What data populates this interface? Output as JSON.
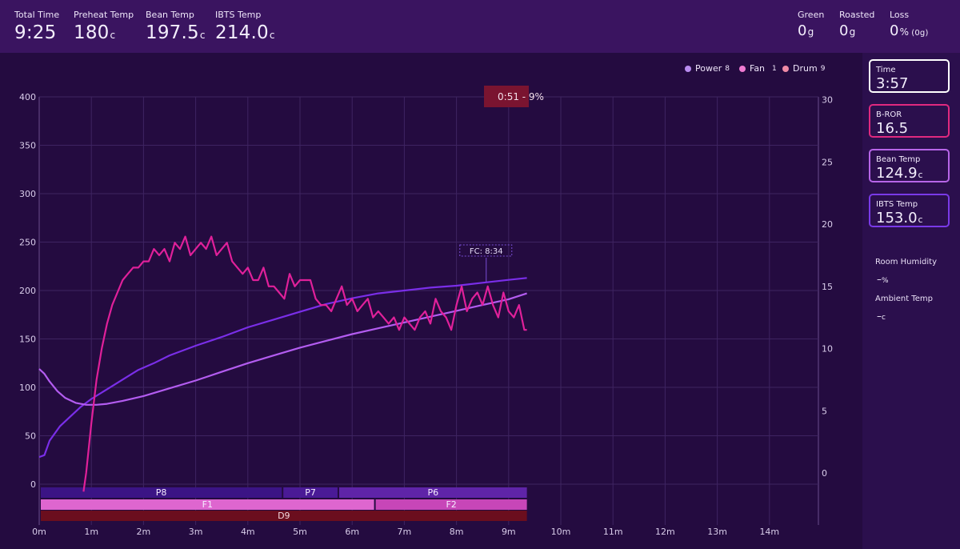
{
  "header": {
    "total_time": {
      "label": "Total Time",
      "value": "9:25"
    },
    "preheat_temp": {
      "label": "Preheat Temp",
      "value": "180",
      "unit": "c"
    },
    "bean_temp": {
      "label": "Bean Temp",
      "value": "197.5",
      "unit": "c"
    },
    "ibts_temp": {
      "label": "IBTS Temp",
      "value": "214.0",
      "unit": "c"
    },
    "green": {
      "label": "Green",
      "value": "0",
      "unit": "g"
    },
    "roasted": {
      "label": "Roasted",
      "value": "0",
      "unit": "g"
    },
    "loss": {
      "label": "Loss",
      "value": "0",
      "unit": "%",
      "extra": "(0g)"
    }
  },
  "legend": [
    {
      "name": "Power",
      "value": "8",
      "color": "#b98cf0"
    },
    {
      "name": "Fan",
      "value": "1",
      "color": "#f07ad2"
    },
    {
      "name": "Drum",
      "value": "9",
      "color": "#f08aa6"
    }
  ],
  "cursor_cards": [
    {
      "label": "Time",
      "value": "3:57",
      "unit": "",
      "border": "#ffffff"
    },
    {
      "label": "B-ROR",
      "value": "16.5",
      "unit": "",
      "border": "#e0297f"
    },
    {
      "label": "Bean Temp",
      "value": "124.9",
      "unit": "c",
      "border": "#b765e8"
    },
    {
      "label": "IBTS Temp",
      "value": "153.0",
      "unit": "c",
      "border": "#7a3ae8"
    }
  ],
  "environment": {
    "humidity_label": "Room Humidity",
    "humidity_value": "–",
    "humidity_unit": "%",
    "ambient_label": "Ambient Temp",
    "ambient_value": "–",
    "ambient_unit": "c"
  },
  "chart_data": {
    "type": "line",
    "x_unit": "minutes",
    "x_ticks": [
      "0m",
      "1m",
      "2m",
      "3m",
      "4m",
      "5m",
      "6m",
      "7m",
      "8m",
      "9m",
      "10m",
      "11m",
      "12m",
      "13m",
      "14m"
    ],
    "y_left_ticks": [
      "400",
      "350",
      "300",
      "250",
      "200",
      "150",
      "100",
      "50",
      "0"
    ],
    "y_right_ticks": [
      "30",
      "25",
      "20",
      "15",
      "10",
      "5",
      "0"
    ],
    "y_left_range": [
      0,
      400
    ],
    "y_right_range": [
      0,
      30
    ],
    "x_range": [
      0,
      14.8
    ],
    "grid": true,
    "series": [
      {
        "name": "IBTS Temp",
        "axis": "left",
        "color": "#7a2ee8",
        "x": [
          0,
          0.1,
          0.2,
          0.4,
          0.6,
          0.8,
          1.0,
          1.3,
          1.6,
          1.9,
          2.2,
          2.5,
          3.0,
          3.5,
          4.0,
          4.5,
          5.0,
          5.5,
          6.0,
          6.5,
          7.0,
          7.5,
          8.0,
          8.5,
          9.0,
          9.35
        ],
        "y": [
          28,
          30,
          45,
          60,
          70,
          80,
          88,
          98,
          108,
          118,
          125,
          133,
          143,
          152,
          162,
          170,
          178,
          186,
          192,
          197,
          200,
          203,
          205,
          208,
          211,
          213
        ]
      },
      {
        "name": "Bean Temp",
        "axis": "left",
        "color": "#b35cf0",
        "x": [
          0,
          0.1,
          0.2,
          0.35,
          0.5,
          0.7,
          0.9,
          1.1,
          1.3,
          1.6,
          2.0,
          2.5,
          3.0,
          3.5,
          4.0,
          4.5,
          5.0,
          5.5,
          6.0,
          6.5,
          7.0,
          7.5,
          8.0,
          8.5,
          9.0,
          9.35
        ],
        "y": [
          119,
          114,
          106,
          96,
          89,
          84,
          82,
          82,
          83,
          86,
          91,
          99,
          107,
          116,
          125,
          133,
          141,
          148,
          155,
          161,
          167,
          173,
          179,
          185,
          191,
          197
        ]
      },
      {
        "name": "B-ROR",
        "axis": "right",
        "color": "#e0209a",
        "x": [
          0.85,
          0.9,
          1.0,
          1.1,
          1.2,
          1.3,
          1.4,
          1.5,
          1.6,
          1.7,
          1.8,
          1.9,
          2.0,
          2.1,
          2.2,
          2.3,
          2.4,
          2.5,
          2.6,
          2.7,
          2.8,
          2.9,
          3.0,
          3.1,
          3.2,
          3.3,
          3.4,
          3.5,
          3.6,
          3.7,
          3.8,
          3.9,
          4.0,
          4.1,
          4.2,
          4.3,
          4.4,
          4.5,
          4.6,
          4.7,
          4.8,
          4.9,
          5.0,
          5.1,
          5.2,
          5.3,
          5.4,
          5.5,
          5.6,
          5.7,
          5.8,
          5.9,
          6.0,
          6.1,
          6.2,
          6.3,
          6.4,
          6.5,
          6.6,
          6.7,
          6.8,
          6.9,
          7.0,
          7.1,
          7.2,
          7.3,
          7.4,
          7.5,
          7.6,
          7.7,
          7.8,
          7.9,
          8.0,
          8.1,
          8.2,
          8.3,
          8.4,
          8.5,
          8.6,
          8.7,
          8.8,
          8.9,
          9.0,
          9.1,
          9.2,
          9.3,
          9.35
        ],
        "y": [
          -1.5,
          0,
          4,
          7.5,
          10,
          12,
          13.5,
          14.5,
          15.5,
          16,
          16.5,
          16.5,
          17,
          17,
          18,
          17.5,
          18,
          17,
          18.5,
          18,
          19,
          17.5,
          18,
          18.5,
          18,
          19,
          17.5,
          18,
          18.5,
          17,
          16.5,
          16,
          16.5,
          15.5,
          15.5,
          16.5,
          15,
          15,
          14.5,
          14,
          16,
          15,
          15.5,
          15.5,
          15.5,
          14,
          13.5,
          13.5,
          13,
          14,
          15,
          13.5,
          14,
          13,
          13.5,
          14,
          12.5,
          13,
          12.5,
          12,
          12.5,
          11.5,
          12.5,
          12,
          11.5,
          12.5,
          13,
          12,
          14,
          13,
          12.5,
          11.5,
          13.5,
          15,
          13,
          14,
          14.5,
          13.5,
          15,
          13.5,
          12.5,
          14.5,
          13,
          12.5,
          13.5,
          11.5,
          11.5
        ]
      }
    ],
    "annotations": [
      {
        "text": "FC: 8:34",
        "x": 8.57
      },
      {
        "text": "0:51 - 9%",
        "x": 9.0
      }
    ],
    "phase_bars": [
      {
        "row": "power",
        "segments": [
          {
            "label": "P8",
            "start": 0,
            "end": 4.65,
            "color": "#3b1485"
          },
          {
            "label": "P7",
            "start": 4.65,
            "end": 5.72,
            "color": "#4a1a96"
          },
          {
            "label": "P6",
            "start": 5.72,
            "end": 9.35,
            "color": "#5f24a8"
          }
        ]
      },
      {
        "row": "fan",
        "segments": [
          {
            "label": "F1",
            "start": 0,
            "end": 6.42,
            "color": "#de66cf"
          },
          {
            "label": "F2",
            "start": 6.42,
            "end": 9.35,
            "color": "#c746b8"
          }
        ]
      },
      {
        "row": "drum",
        "segments": [
          {
            "label": "D9",
            "start": 0,
            "end": 9.35,
            "color": "#6b0e1e"
          }
        ]
      }
    ]
  }
}
